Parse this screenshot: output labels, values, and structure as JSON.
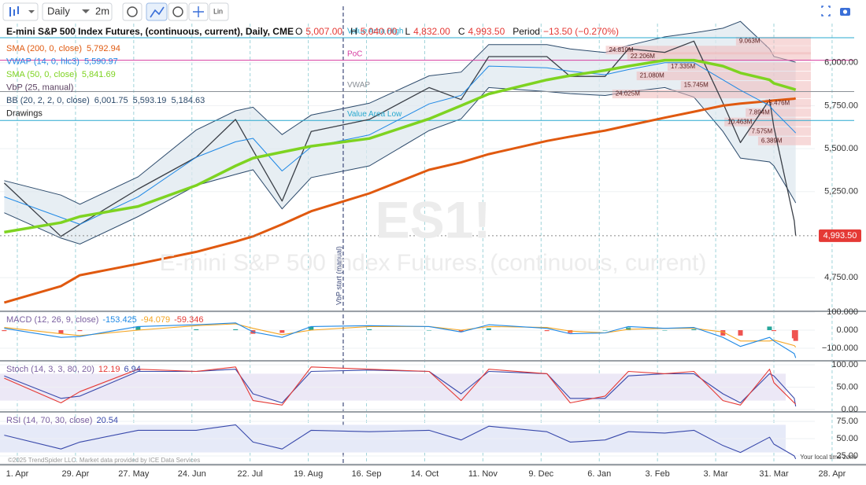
{
  "toolbar": {
    "interval": "Daily",
    "timeframe": "2m",
    "scale": "Lin"
  },
  "watermark": {
    "symbol": "ES1!",
    "name": "E-mini S&P 500 Index Futures, (continuous, current)"
  },
  "footer": {
    "copyright": "©2025 TrendSpider LLC. Market data provided by ICE Data Services",
    "timezone": "Your local time zone"
  },
  "chart_data": [
    {
      "type": "line",
      "title": "E-mini S&P 500 Index Futures, (continuous, current), Daily, CME",
      "ohlc": [
        {
          "key": "O",
          "label": "5,007.00"
        },
        {
          "key": "H",
          "label": "5,040.00"
        },
        {
          "key": "L",
          "label": "4,832.00"
        },
        {
          "key": "C",
          "label": "4,993.50"
        }
      ],
      "period": {
        "key": "Period",
        "label": "−13.50 (−0.270%)"
      },
      "drawings": "Drawings",
      "x": [
        -0.9,
        3,
        4.3,
        8.3,
        12.3,
        15,
        16.2,
        18.2,
        20.2,
        24.2,
        28.3,
        30.5,
        32.4,
        36.4,
        38,
        40.4,
        42,
        44.5,
        46.5,
        48.5,
        49.7,
        51.7,
        52,
        53.4,
        53.5
      ],
      "xlim": [
        -1.19,
        57.79
      ],
      "xticks": [
        {
          "value": 0,
          "label": "1. Apr"
        },
        {
          "value": 4,
          "label": "29. Apr"
        },
        {
          "value": 8,
          "label": "27. May"
        },
        {
          "value": 12,
          "label": "24. Jun"
        },
        {
          "value": 16,
          "label": "22. Jul"
        },
        {
          "value": 20,
          "label": "19. Aug"
        },
        {
          "value": 24,
          "label": "16. Sep"
        },
        {
          "value": 28,
          "label": "14. Oct"
        },
        {
          "value": 32,
          "label": "11. Nov"
        },
        {
          "value": 36,
          "label": "9. Dec"
        },
        {
          "value": 40,
          "label": "6. Jan"
        },
        {
          "value": 44,
          "label": "3. Feb"
        },
        {
          "value": 48,
          "label": "3. Mar"
        },
        {
          "value": 52,
          "label": "31. Mar"
        },
        {
          "value": 56,
          "label": "28. Apr"
        }
      ],
      "ylim": [
        4559,
        6218
      ],
      "yticks": [
        {
          "value": 4750,
          "label": "4,750.00"
        },
        {
          "value": 5250,
          "label": "5,250.00"
        },
        {
          "value": 5500,
          "label": "5,500.00"
        },
        {
          "value": 5750,
          "label": "5,750.00"
        },
        {
          "value": 6000,
          "label": "6,000.00"
        }
      ],
      "series": [
        {
          "color": "#3a3f47",
          "values": [
            5300,
            4990,
            5060,
            5265,
            5450,
            5670,
            5490,
            5195,
            5600,
            5670,
            5855,
            5785,
            6035,
            6035,
            5920,
            5920,
            6080,
            6060,
            6125,
            5765,
            5535,
            5785,
            5625,
            5080,
            4993.5
          ]
        },
        {
          "name": "SMA (200, 0, close)",
          "legend_value": "5,792.94",
          "color": "#e0590f",
          "values": [
            4605,
            4700,
            4764,
            4830,
            4900,
            4960,
            4990,
            5060,
            5136,
            5240,
            5377,
            5420,
            5468,
            5545,
            5570,
            5605,
            5635,
            5680,
            5715,
            5750,
            5762,
            5777,
            5780,
            5790,
            5792.94
          ]
        },
        {
          "name": "VWAP (14, 0, hlc3)",
          "legend_value": "5,590.97",
          "color": "#1e88e5",
          "values": [
            5220,
            5100,
            5060,
            5220,
            5450,
            5540,
            5560,
            5370,
            5510,
            5580,
            5760,
            5810,
            5980,
            5970,
            5950,
            5930,
            5960,
            6000,
            6000,
            5900,
            5840,
            5750,
            5720,
            5600,
            5590.97
          ]
        },
        {
          "name": "SMA (50, 0, close)",
          "legend_value": "5,841.69",
          "color": "#7ed321",
          "values": [
            5014,
            5070,
            5105,
            5164,
            5286,
            5400,
            5445,
            5480,
            5514,
            5559,
            5673,
            5750,
            5818,
            5900,
            5925,
            5955,
            5980,
            6014,
            6014,
            5980,
            5940,
            5900,
            5880,
            5845,
            5841.69
          ]
        }
      ],
      "bands": {
        "name": "BB (20, 2, 2, 0, close)",
        "legend_values": [
          "6,001.75",
          "5,593.19",
          "5,184.63"
        ],
        "color": "#2c4a6b",
        "upper": [
          5314,
          5230,
          5177,
          5336,
          5609,
          5720,
          5741,
          5582,
          5695,
          5764,
          5923,
          5945,
          6105,
          6105,
          6080,
          6059,
          6100,
          6150,
          6173,
          6200,
          6240,
          6080,
          6036,
          6005,
          6001.75
        ],
        "lower": [
          5127,
          4980,
          4945,
          5105,
          5286,
          5350,
          5377,
          5150,
          5332,
          5400,
          5605,
          5673,
          5855,
          5832,
          5820,
          5809,
          5830,
          5855,
          5800,
          5600,
          5445,
          5423,
          5400,
          5200,
          5184.63
        ]
      },
      "volume_profile": {
        "name": "VbP (25, manual)",
        "color": "#f0b9b9",
        "start": {
          "x": 22.4,
          "label": "VbP start (manual)"
        },
        "bars": [
          {
            "price": 6125,
            "volume": 9.063,
            "label": "9.063M"
          },
          {
            "price": 6073,
            "volume": 24.81,
            "label": "24.810M"
          },
          {
            "price": 6036,
            "volume": 22.206,
            "label": "22.206M"
          },
          {
            "price": 5977,
            "volume": 17.335,
            "label": "17.335M"
          },
          {
            "price": 5923,
            "volume": 21.08,
            "label": "21.080M"
          },
          {
            "price": 5868,
            "volume": 15.745,
            "label": "15.745M"
          },
          {
            "price": 5818,
            "volume": 24.025,
            "label": "24.025M"
          },
          {
            "price": 5764,
            "volume": 5.476,
            "label": "5.476M"
          },
          {
            "price": 5710,
            "volume": 7.894,
            "label": "7.894M"
          },
          {
            "price": 5655,
            "volume": 10.463,
            "label": "10.463M"
          },
          {
            "price": 5600,
            "volume": 7.575,
            "label": "7.575M"
          },
          {
            "price": 5545,
            "volume": 6.389,
            "label": "6.389M"
          }
        ]
      },
      "levels": [
        {
          "label": "Value Area High",
          "value": 6145,
          "color": "#29a9cf"
        },
        {
          "label": "PoC",
          "value": 6014,
          "color": "#d63ca0"
        },
        {
          "label": "VWAP",
          "value": 5832,
          "color": "#8a8f96"
        },
        {
          "label": "Value Area Low",
          "value": 5664,
          "color": "#29a9cf"
        }
      ],
      "last_price": {
        "value": 4993.5,
        "label": "4,993.50",
        "color": "#e53935"
      }
    },
    {
      "type": "line",
      "title": "MACD (12, 26, 9, close)",
      "legend_values": [
        "-153.425",
        "-94.079",
        "-59.346"
      ],
      "legend_colors": [
        "#1e88e5",
        "#f5a623",
        "#e53935"
      ],
      "ylim": [
        -165,
        100
      ],
      "yticks": [
        {
          "value": -100,
          "label": "−100.000"
        },
        {
          "value": 0,
          "label": "0.000"
        },
        {
          "value": 100,
          "label": "100.000"
        }
      ],
      "x": [
        -0.9,
        3,
        4.3,
        8.3,
        12.3,
        15,
        16.2,
        18.2,
        20.2,
        24.2,
        28.3,
        30.5,
        32.4,
        36.4,
        38,
        40.4,
        42,
        44.5,
        46.5,
        48.5,
        49.7,
        51.7,
        52,
        53.4,
        53.5
      ],
      "series": [
        {
          "type": "bar",
          "positive_color": "#26a69a",
          "negative_color": "#ef5350",
          "values": [
            -5,
            -20,
            -5,
            20,
            5,
            5,
            -20,
            -15,
            20,
            5,
            0,
            -10,
            10,
            -5,
            -15,
            0,
            15,
            0,
            5,
            -30,
            -30,
            20,
            -5,
            -45,
            -59.346
          ]
        },
        {
          "color": "#f5a623",
          "values": [
            15,
            -20,
            -30,
            0,
            25,
            35,
            10,
            -25,
            0,
            20,
            20,
            0,
            20,
            15,
            -5,
            -15,
            5,
            10,
            10,
            -10,
            -60,
            -60,
            -55,
            -85,
            -94.079
          ]
        },
        {
          "color": "#1e88e5",
          "values": [
            10,
            -40,
            -35,
            20,
            30,
            40,
            -10,
            -40,
            20,
            25,
            20,
            -10,
            30,
            10,
            -20,
            -15,
            20,
            10,
            15,
            -40,
            -90,
            -40,
            -60,
            -130,
            -153.425
          ]
        }
      ]
    },
    {
      "type": "line",
      "title": "Stoch (14, 3, 3, 80, 20)",
      "legend_values": [
        "12.19",
        "6.94"
      ],
      "legend_colors": [
        "#e53935",
        "#3949ab"
      ],
      "ylim": [
        -3.5,
        107
      ],
      "yticks": [
        {
          "value": 0,
          "label": "0.00"
        },
        {
          "value": 50,
          "label": "50.00"
        },
        {
          "value": 100,
          "label": "100.00"
        }
      ],
      "band": [
        20,
        80
      ],
      "band_color": "#ece8f6",
      "x": [
        -0.9,
        3,
        4.3,
        8.3,
        12.3,
        15,
        16.2,
        18.2,
        20.2,
        24.2,
        28.3,
        30.5,
        32.4,
        36.4,
        38,
        40.4,
        42,
        44.5,
        46.5,
        48.5,
        49.7,
        51.7,
        52,
        53.4,
        53.5
      ],
      "series": [
        {
          "color": "#3949ab",
          "values": [
            75,
            25,
            30,
            85,
            85,
            90,
            35,
            15,
            85,
            88,
            85,
            35,
            85,
            80,
            25,
            25,
            75,
            80,
            80,
            35,
            15,
            80,
            75,
            25,
            6.94
          ]
        },
        {
          "color": "#e53935",
          "values": [
            70,
            15,
            40,
            90,
            85,
            95,
            20,
            10,
            95,
            90,
            85,
            20,
            90,
            80,
            15,
            30,
            85,
            80,
            85,
            20,
            10,
            90,
            60,
            15,
            12.19
          ]
        }
      ]
    },
    {
      "type": "line",
      "title": "RSI (14, 70, 30, close)",
      "legend_values": [
        "20.54"
      ],
      "legend_colors": [
        "#3949ab"
      ],
      "ylim": [
        13.6,
        87.5
      ],
      "yticks": [
        {
          "value": 25,
          "label": "25.00"
        },
        {
          "value": 50,
          "label": "50.00"
        },
        {
          "value": 75,
          "label": "75.00"
        }
      ],
      "band": [
        30,
        70
      ],
      "band_color": "#e6eaf8",
      "x": [
        -0.9,
        3,
        4.3,
        8.3,
        12.3,
        15,
        16.2,
        18.2,
        20.2,
        24.2,
        28.3,
        30.5,
        32.4,
        36.4,
        38,
        40.4,
        42,
        44.5,
        46.5,
        48.5,
        49.7,
        51.7,
        52,
        53.4,
        53.5
      ],
      "series": [
        {
          "color": "#3949ab",
          "values": [
            55,
            35,
            45,
            62,
            62,
            70,
            45,
            35,
            62,
            60,
            62,
            48,
            68,
            60,
            45,
            48,
            60,
            58,
            62,
            40,
            30,
            52,
            42,
            25,
            20.54
          ]
        }
      ]
    }
  ]
}
